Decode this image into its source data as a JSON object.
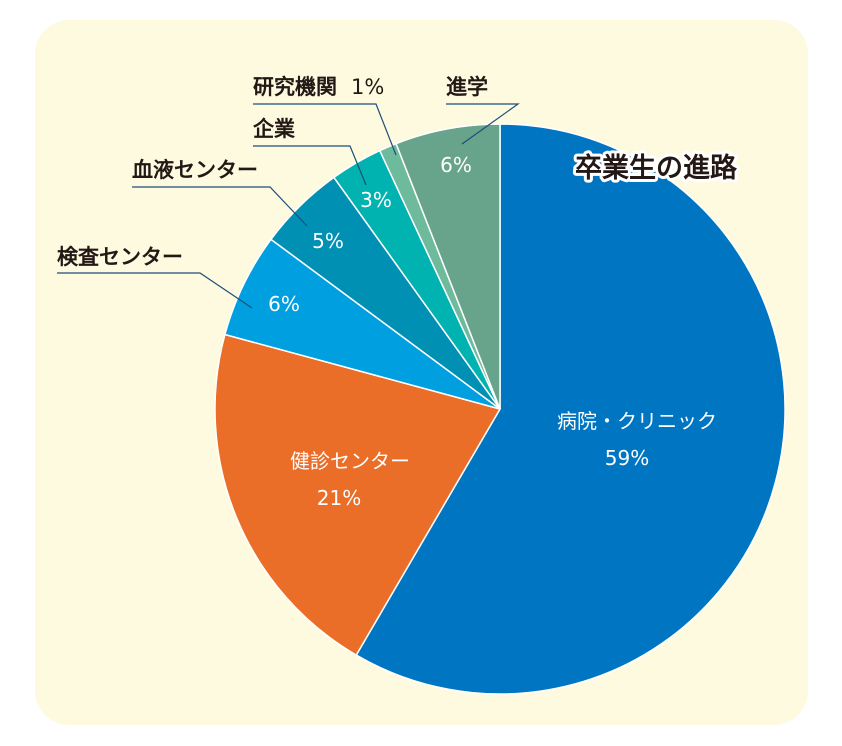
{
  "chart_data": {
    "type": "pie",
    "title": "卒業生の進路",
    "slices": [
      {
        "label": "病院・クリニック",
        "value_label": "59%",
        "value": 59,
        "color": "#0075c2"
      },
      {
        "label": "健診センター",
        "value_label": "21%",
        "value": 21,
        "color": "#ea6d28"
      },
      {
        "label": "検査センター",
        "value_label": "6%",
        "value": 6,
        "color": "#00a0e0"
      },
      {
        "label": "血液センター",
        "value_label": "5%",
        "value": 5,
        "color": "#0090b4"
      },
      {
        "label": "企業",
        "value_label": "3%",
        "value": 3,
        "color": "#00b2b0"
      },
      {
        "label": "研究機関",
        "value_label": "1%",
        "value": 1,
        "color": "#6dba9d"
      },
      {
        "label": "進学",
        "value_label": "6%",
        "value": 6,
        "color": "#68a48b"
      }
    ]
  },
  "background_color": "#fefae0",
  "leader_line_color": "#1d4e7a"
}
